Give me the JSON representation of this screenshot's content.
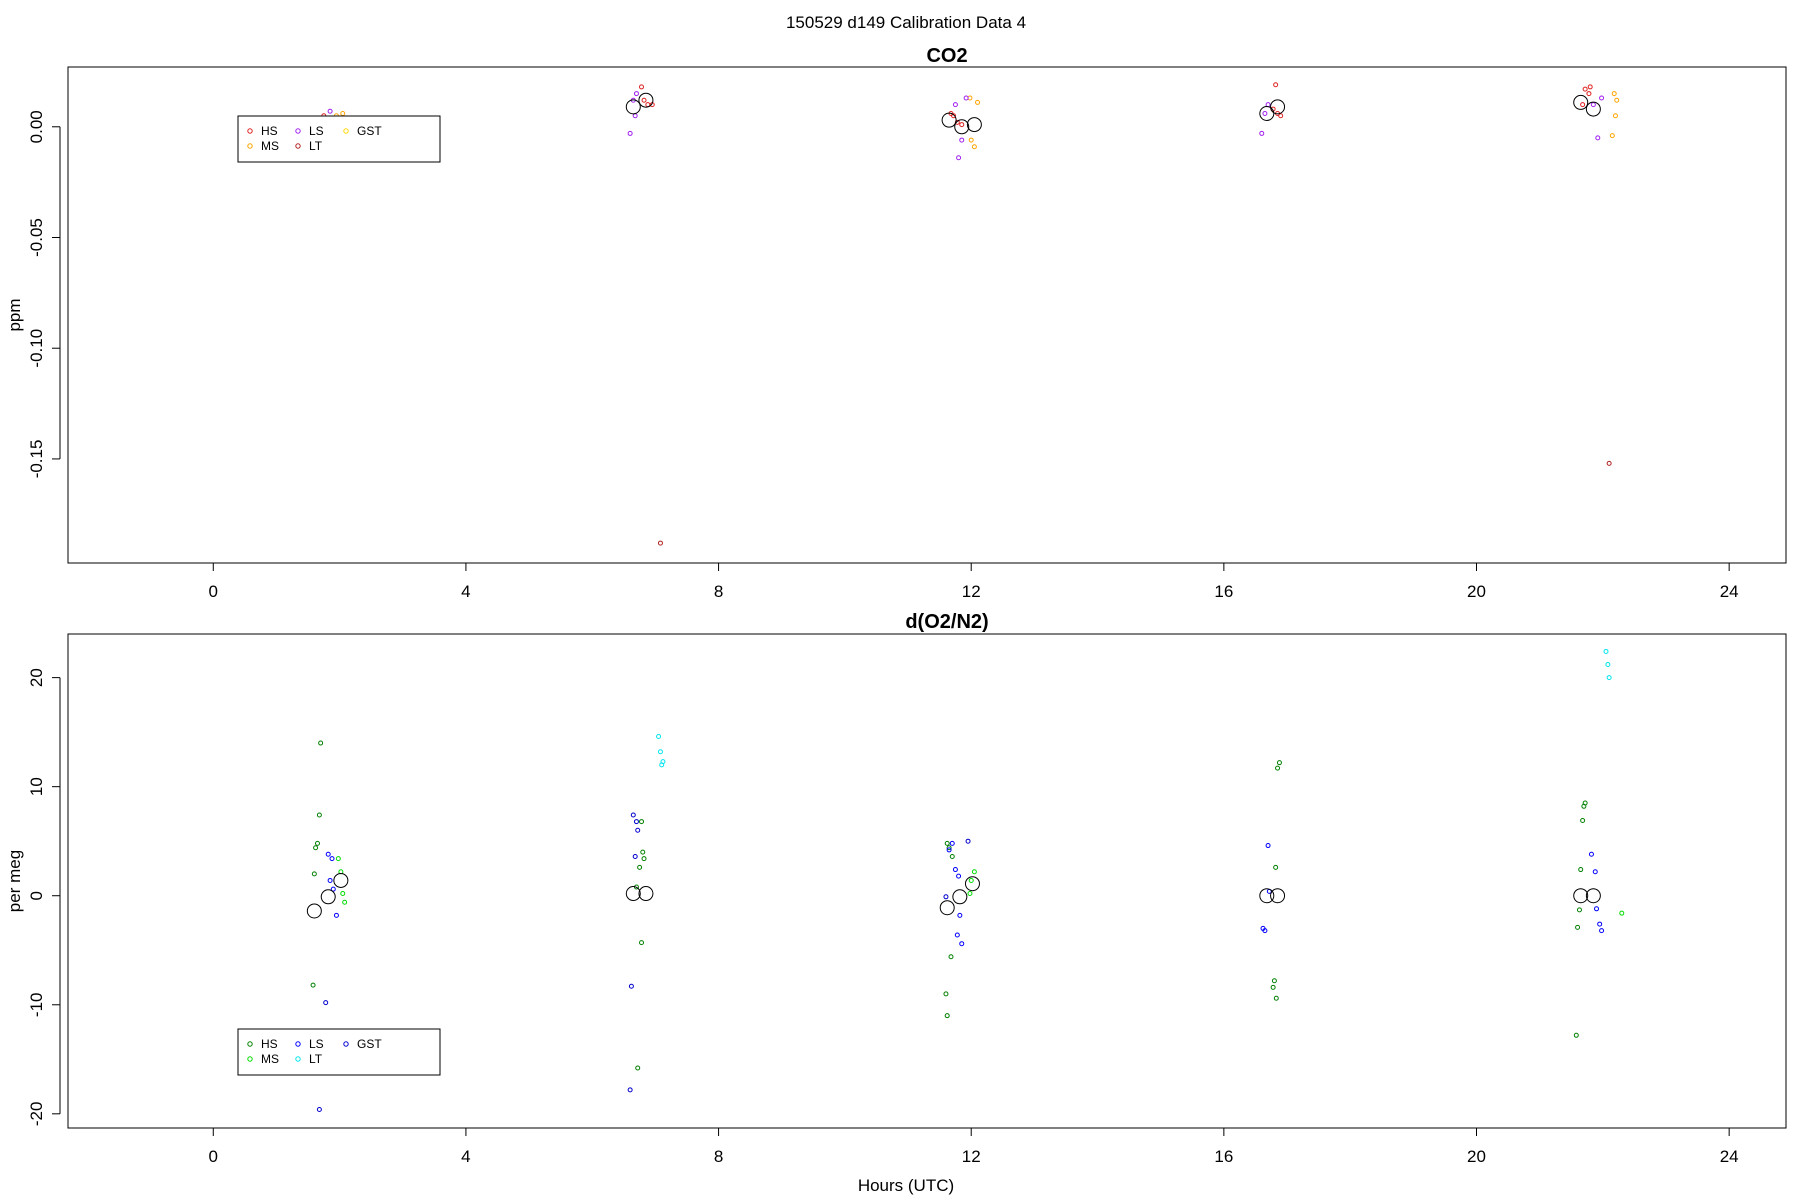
{
  "figure": {
    "suptitle": "150529   d149   Calibration Data 4",
    "xlabel": "Hours (UTC)"
  },
  "chart_data": [
    {
      "type": "scatter",
      "title": "CO2",
      "xlabel": "",
      "ylabel": "ppm",
      "xlim": [
        -2.3,
        24.9
      ],
      "ylim": [
        -0.197,
        0.027
      ],
      "xticks": [
        0,
        4,
        8,
        12,
        16,
        20,
        24
      ],
      "yticks": [
        0.0,
        -0.05,
        -0.1,
        -0.15
      ],
      "ytick_labels": [
        "0.00",
        "-0.05",
        "-0.10",
        "-0.15"
      ],
      "grid": false,
      "legend": {
        "placement": "upper-left",
        "entries": [
          {
            "name": "HS",
            "color": "#e02020"
          },
          {
            "name": "MS",
            "color": "#ffa500"
          },
          {
            "name": "LS",
            "color": "#a020f0"
          },
          {
            "name": "LT",
            "color": "#b22222"
          },
          {
            "name": "GST",
            "color": "#ffd700"
          }
        ]
      },
      "series": [
        {
          "name": "HS",
          "color": "#e02020",
          "x": [
            1.65,
            1.7,
            1.75,
            1.8,
            1.65,
            6.82,
            6.88,
            6.95,
            6.78,
            11.72,
            11.78,
            11.85,
            11.68,
            16.78,
            16.85,
            16.9,
            16.82,
            21.72,
            21.78,
            21.8,
            21.68
          ],
          "y": [
            -0.015,
            -0.008,
            0.005,
            0.003,
            -0.002,
            0.012,
            0.01,
            0.01,
            0.018,
            0.005,
            0.002,
            0.001,
            0.006,
            0.008,
            0.006,
            0.005,
            0.019,
            0.017,
            0.015,
            0.018,
            0.01
          ]
        },
        {
          "name": "MS",
          "color": "#ffa500",
          "x": [
            1.95,
            2.0,
            2.05,
            12.0,
            12.05,
            12.1,
            11.98,
            22.15,
            22.2,
            22.22,
            22.18
          ],
          "y": [
            0.005,
            0.003,
            0.006,
            -0.006,
            -0.009,
            0.011,
            0.013,
            -0.004,
            0.005,
            0.012,
            0.015
          ]
        },
        {
          "name": "LS",
          "color": "#a020f0",
          "x": [
            1.85,
            1.9,
            1.78,
            6.6,
            6.65,
            6.7,
            6.68,
            11.8,
            11.85,
            11.75,
            11.92,
            16.6,
            16.65,
            16.7,
            21.92,
            21.98,
            21.85
          ],
          "y": [
            0.007,
            0.002,
            -0.006,
            -0.003,
            0.012,
            0.015,
            0.005,
            -0.014,
            -0.006,
            0.01,
            0.013,
            -0.003,
            0.006,
            0.01,
            -0.005,
            0.013,
            0.01
          ]
        },
        {
          "name": "LT",
          "color": "#b22222",
          "x": [
            7.08,
            22.1
          ],
          "y": [
            -0.188,
            -0.152
          ]
        },
        {
          "name": "GST",
          "color": "#ffd700",
          "x": [],
          "y": []
        },
        {
          "name": "",
          "color": "#000000",
          "marker": "large-circle",
          "x": [
            1.62,
            6.65,
            6.85,
            11.65,
            11.85,
            12.05,
            16.68,
            16.85,
            21.65,
            21.85
          ],
          "y": [
            -0.001,
            0.009,
            0.012,
            0.003,
            0.0,
            0.001,
            0.006,
            0.009,
            0.011,
            0.008
          ]
        }
      ]
    },
    {
      "type": "scatter",
      "title": "d(O2/N2)",
      "xlabel": "Hours (UTC)",
      "ylabel": "per meg",
      "xlim": [
        -2.3,
        24.9
      ],
      "ylim": [
        -21.3,
        24.0
      ],
      "xticks": [
        0,
        4,
        8,
        12,
        16,
        20,
        24
      ],
      "yticks": [
        20,
        10,
        0,
        -10,
        -20
      ],
      "ytick_labels": [
        "20",
        "10",
        "0",
        "-10",
        "-20"
      ],
      "grid": false,
      "legend": {
        "placement": "lower-left",
        "entries": [
          {
            "name": "HS",
            "color": "#008000"
          },
          {
            "name": "MS",
            "color": "#00dd00"
          },
          {
            "name": "LS",
            "color": "#0000ff"
          },
          {
            "name": "LT",
            "color": "#00e5ee"
          },
          {
            "name": "GST",
            "color": "#0000cd"
          }
        ]
      },
      "series": [
        {
          "name": "HS",
          "color": "#008000",
          "x": [
            1.7,
            1.68,
            1.65,
            1.62,
            1.6,
            1.58,
            1.55,
            6.78,
            6.8,
            6.82,
            6.75,
            6.7,
            6.78,
            6.72,
            11.62,
            11.65,
            11.7,
            11.68,
            11.6,
            11.62,
            16.88,
            16.85,
            16.82,
            16.8,
            16.78,
            16.83,
            21.72,
            21.7,
            21.68,
            21.65,
            21.63,
            21.6,
            21.58
          ],
          "y": [
            14.0,
            7.4,
            4.8,
            4.4,
            2.0,
            -8.2,
            -16.1,
            6.8,
            4.0,
            3.4,
            2.6,
            0.8,
            -4.3,
            -15.8,
            4.8,
            4.4,
            3.6,
            -5.6,
            -9.0,
            -11.0,
            12.2,
            11.7,
            2.6,
            -7.8,
            -8.4,
            -9.4,
            8.5,
            8.2,
            6.9,
            2.4,
            -1.3,
            -2.9,
            -12.8
          ]
        },
        {
          "name": "MS",
          "color": "#00dd00",
          "x": [
            1.98,
            2.02,
            2.05,
            2.08,
            12.05,
            12.0,
            11.98,
            22.3
          ],
          "y": [
            3.4,
            2.2,
            0.2,
            -0.6,
            2.2,
            1.4,
            0.2,
            -1.6
          ]
        },
        {
          "name": "LS",
          "color": "#0000ff",
          "x": [
            1.82,
            1.88,
            1.85,
            1.9,
            1.95,
            11.75,
            11.8,
            11.82,
            11.78,
            11.85,
            11.7,
            11.65,
            16.7,
            16.72,
            16.65,
            16.62,
            21.82,
            21.88,
            21.9,
            21.95,
            21.98
          ],
          "y": [
            3.8,
            3.4,
            1.4,
            0.6,
            -1.8,
            2.4,
            1.8,
            -1.8,
            -3.6,
            -4.4,
            4.8,
            4.2,
            4.6,
            0.4,
            -3.2,
            -3.0,
            3.8,
            2.2,
            -1.2,
            -2.6,
            -3.2
          ]
        },
        {
          "name": "LT",
          "color": "#00e5ee",
          "x": [
            7.05,
            7.08,
            7.1,
            7.12,
            22.05,
            22.08,
            22.1
          ],
          "y": [
            14.6,
            13.2,
            12.0,
            12.3,
            22.4,
            21.2,
            20.0
          ]
        },
        {
          "name": "GST",
          "color": "#0000cd",
          "x": [
            1.78,
            1.68,
            6.62,
            6.65,
            6.7,
            6.72,
            6.68,
            6.6,
            11.95,
            11.6
          ],
          "y": [
            -9.8,
            -19.6,
            -8.3,
            7.4,
            6.8,
            6.0,
            3.6,
            -17.8,
            5.0,
            -0.1
          ]
        },
        {
          "name": "",
          "color": "#000000",
          "marker": "large-circle",
          "x": [
            1.6,
            1.82,
            2.02,
            6.65,
            6.85,
            11.62,
            11.82,
            12.02,
            16.68,
            16.85,
            21.65,
            21.85
          ],
          "y": [
            -1.4,
            -0.1,
            1.4,
            0.2,
            0.2,
            -1.1,
            -0.1,
            1.1,
            0.0,
            0.0,
            0.0,
            0.0
          ]
        }
      ]
    }
  ]
}
